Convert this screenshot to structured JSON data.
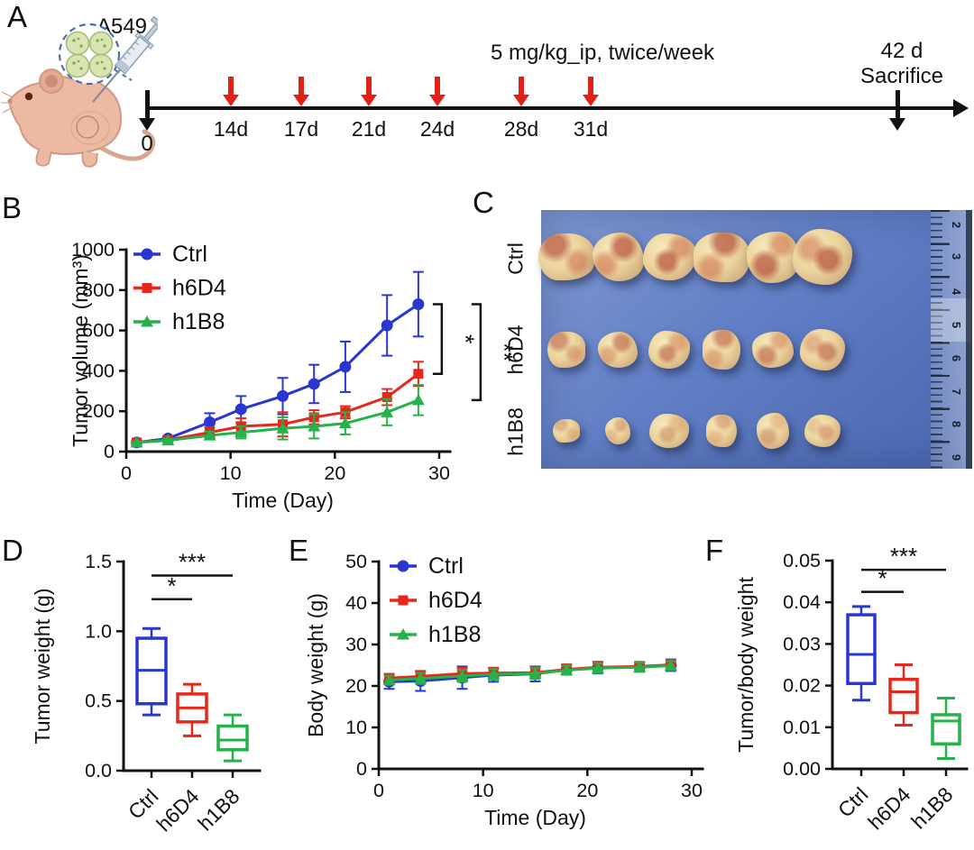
{
  "figure": {
    "background": "#ffffff",
    "colors": {
      "ctrl": "#2936cf",
      "h6d4": "#e8271b",
      "h1b8": "#25b24a",
      "ink": "#111111",
      "red_arrow": "#e32017"
    }
  },
  "panels": {
    "A": {
      "label": "A",
      "cell_line": "A549",
      "timeline_zero": "0",
      "dose_text": "5 mg/kg_ip, twice/week",
      "injection_days": [
        "14d",
        "17d",
        "21d",
        "24d",
        "28d",
        "31d"
      ],
      "sacrifice_day": "42 d",
      "sacrifice_text": "Sacrifice"
    },
    "B": {
      "label": "B"
    },
    "C": {
      "label": "C",
      "row_labels": [
        "Ctrl",
        "h6D4",
        "h1B8"
      ],
      "tumors_per_row": 6,
      "ruler_numbers": [
        "2",
        "3",
        "4",
        "5",
        "6",
        "7",
        "8",
        "9"
      ]
    },
    "D": {
      "label": "D"
    },
    "E": {
      "label": "E"
    },
    "F": {
      "label": "F"
    }
  },
  "chart_data": [
    {
      "id": "B",
      "type": "line",
      "title": "",
      "xlabel": "Time (Day)",
      "ylabel": "Tumor volume (mm³)",
      "xlim": [
        0,
        30
      ],
      "ylim": [
        0,
        1000
      ],
      "xticks": [
        0,
        10,
        20,
        30
      ],
      "xtick_labels": [
        "0",
        "10",
        "20",
        "30"
      ],
      "yticks": [
        0,
        200,
        400,
        600,
        800,
        1000
      ],
      "ytick_labels": [
        "0",
        "200",
        "400",
        "600",
        "800",
        "1000"
      ],
      "grid": false,
      "legend_position": "top-left",
      "x": [
        1,
        4,
        8,
        11,
        15,
        18,
        21,
        25,
        28
      ],
      "series": [
        {
          "name": "Ctrl",
          "color": "#2936cf",
          "marker": "circle",
          "values": [
            45,
            65,
            145,
            210,
            275,
            335,
            420,
            625,
            730
          ],
          "errors": [
            5,
            10,
            45,
            65,
            90,
            95,
            125,
            150,
            160
          ]
        },
        {
          "name": "h6D4",
          "color": "#e8271b",
          "marker": "square",
          "values": [
            45,
            58,
            95,
            125,
            135,
            170,
            195,
            270,
            385
          ],
          "errors": [
            5,
            8,
            25,
            40,
            60,
            35,
            30,
            40,
            60
          ]
        },
        {
          "name": "h1B8",
          "color": "#25b24a",
          "marker": "triangle",
          "values": [
            45,
            55,
            80,
            95,
            115,
            125,
            140,
            195,
            255
          ],
          "errors": [
            5,
            8,
            18,
            30,
            55,
            60,
            55,
            65,
            75
          ]
        }
      ],
      "significance": [
        {
          "label": "*",
          "from": 0,
          "to": 1
        },
        {
          "label": "**",
          "from": 0,
          "to": 2
        }
      ]
    },
    {
      "id": "D",
      "type": "box",
      "ylabel": "Tumor weight (g)",
      "ylim": [
        0,
        1.5
      ],
      "yticks": [
        0,
        0.5,
        1.0,
        1.5
      ],
      "ytick_labels": [
        "0.0",
        "0.5",
        "1.0",
        "1.5"
      ],
      "categories": [
        "Ctrl",
        "h6D4",
        "h1B8"
      ],
      "colors": [
        "#2936cf",
        "#e8271b",
        "#25b24a"
      ],
      "boxes": [
        {
          "whisker_low": 0.4,
          "q1": 0.48,
          "median": 0.72,
          "q3": 0.95,
          "whisker_high": 1.02
        },
        {
          "whisker_low": 0.25,
          "q1": 0.35,
          "median": 0.45,
          "q3": 0.55,
          "whisker_high": 0.62
        },
        {
          "whisker_low": 0.07,
          "q1": 0.15,
          "median": 0.22,
          "q3": 0.32,
          "whisker_high": 0.4
        }
      ],
      "significance": [
        {
          "label": "*",
          "from": 0,
          "to": 1,
          "y": 1.23
        },
        {
          "label": "***",
          "from": 0,
          "to": 2,
          "y": 1.4
        }
      ]
    },
    {
      "id": "E",
      "type": "line",
      "title": "",
      "xlabel": "Time (Day)",
      "ylabel": "Body weight (g)",
      "xlim": [
        0,
        30
      ],
      "ylim": [
        0,
        50
      ],
      "xticks": [
        0,
        10,
        20,
        30
      ],
      "xtick_labels": [
        "0",
        "10",
        "20",
        "30"
      ],
      "yticks": [
        0,
        10,
        20,
        30,
        40,
        50
      ],
      "ytick_labels": [
        "0",
        "10",
        "20",
        "30",
        "40",
        "50"
      ],
      "grid": false,
      "legend_position": "top-left",
      "x": [
        1,
        4,
        8,
        11,
        15,
        18,
        21,
        25,
        28
      ],
      "series": [
        {
          "name": "Ctrl",
          "color": "#2936cf",
          "marker": "circle",
          "values": [
            21,
            21.2,
            22,
            22.6,
            22.9,
            23.9,
            24.4,
            24.6,
            25
          ],
          "errors": [
            1.7,
            2.4,
            2.7,
            1.6,
            1.8,
            1.1,
            1.4,
            1.1,
            1.4
          ]
        },
        {
          "name": "h6D4",
          "color": "#e8271b",
          "marker": "square",
          "values": [
            21.9,
            22.3,
            23,
            23.1,
            23.2,
            24,
            24.5,
            24.7,
            25.1
          ],
          "errors": [
            1.0,
            1.3,
            1.4,
            1.3,
            1.4,
            1.2,
            1.3,
            1.1,
            1.2
          ]
        },
        {
          "name": "h1B8",
          "color": "#25b24a",
          "marker": "triangle",
          "values": [
            21.4,
            21.8,
            22.4,
            22.8,
            23,
            23.8,
            24.3,
            24.5,
            24.9
          ],
          "errors": [
            1.1,
            1.3,
            1.4,
            1.3,
            1.3,
            1.1,
            1.2,
            1.1,
            1.1
          ]
        }
      ],
      "significance": []
    },
    {
      "id": "F",
      "type": "box",
      "ylabel": "Tumor/body weight",
      "ylim": [
        0,
        0.05
      ],
      "yticks": [
        0,
        0.01,
        0.02,
        0.03,
        0.04,
        0.05
      ],
      "ytick_labels": [
        "0.00",
        "0.01",
        "0.02",
        "0.03",
        "0.04",
        "0.05"
      ],
      "categories": [
        "Ctrl",
        "h6D4",
        "h1B8"
      ],
      "colors": [
        "#2936cf",
        "#e8271b",
        "#25b24a"
      ],
      "boxes": [
        {
          "whisker_low": 0.0165,
          "q1": 0.0205,
          "median": 0.0275,
          "q3": 0.037,
          "whisker_high": 0.039
        },
        {
          "whisker_low": 0.0105,
          "q1": 0.0135,
          "median": 0.0185,
          "q3": 0.0215,
          "whisker_high": 0.025
        },
        {
          "whisker_low": 0.0025,
          "q1": 0.006,
          "median": 0.0115,
          "q3": 0.013,
          "whisker_high": 0.017
        }
      ],
      "significance": [
        {
          "label": "*",
          "from": 0,
          "to": 1,
          "y": 0.0425
        },
        {
          "label": "***",
          "from": 0,
          "to": 2,
          "y": 0.0478
        }
      ]
    }
  ]
}
